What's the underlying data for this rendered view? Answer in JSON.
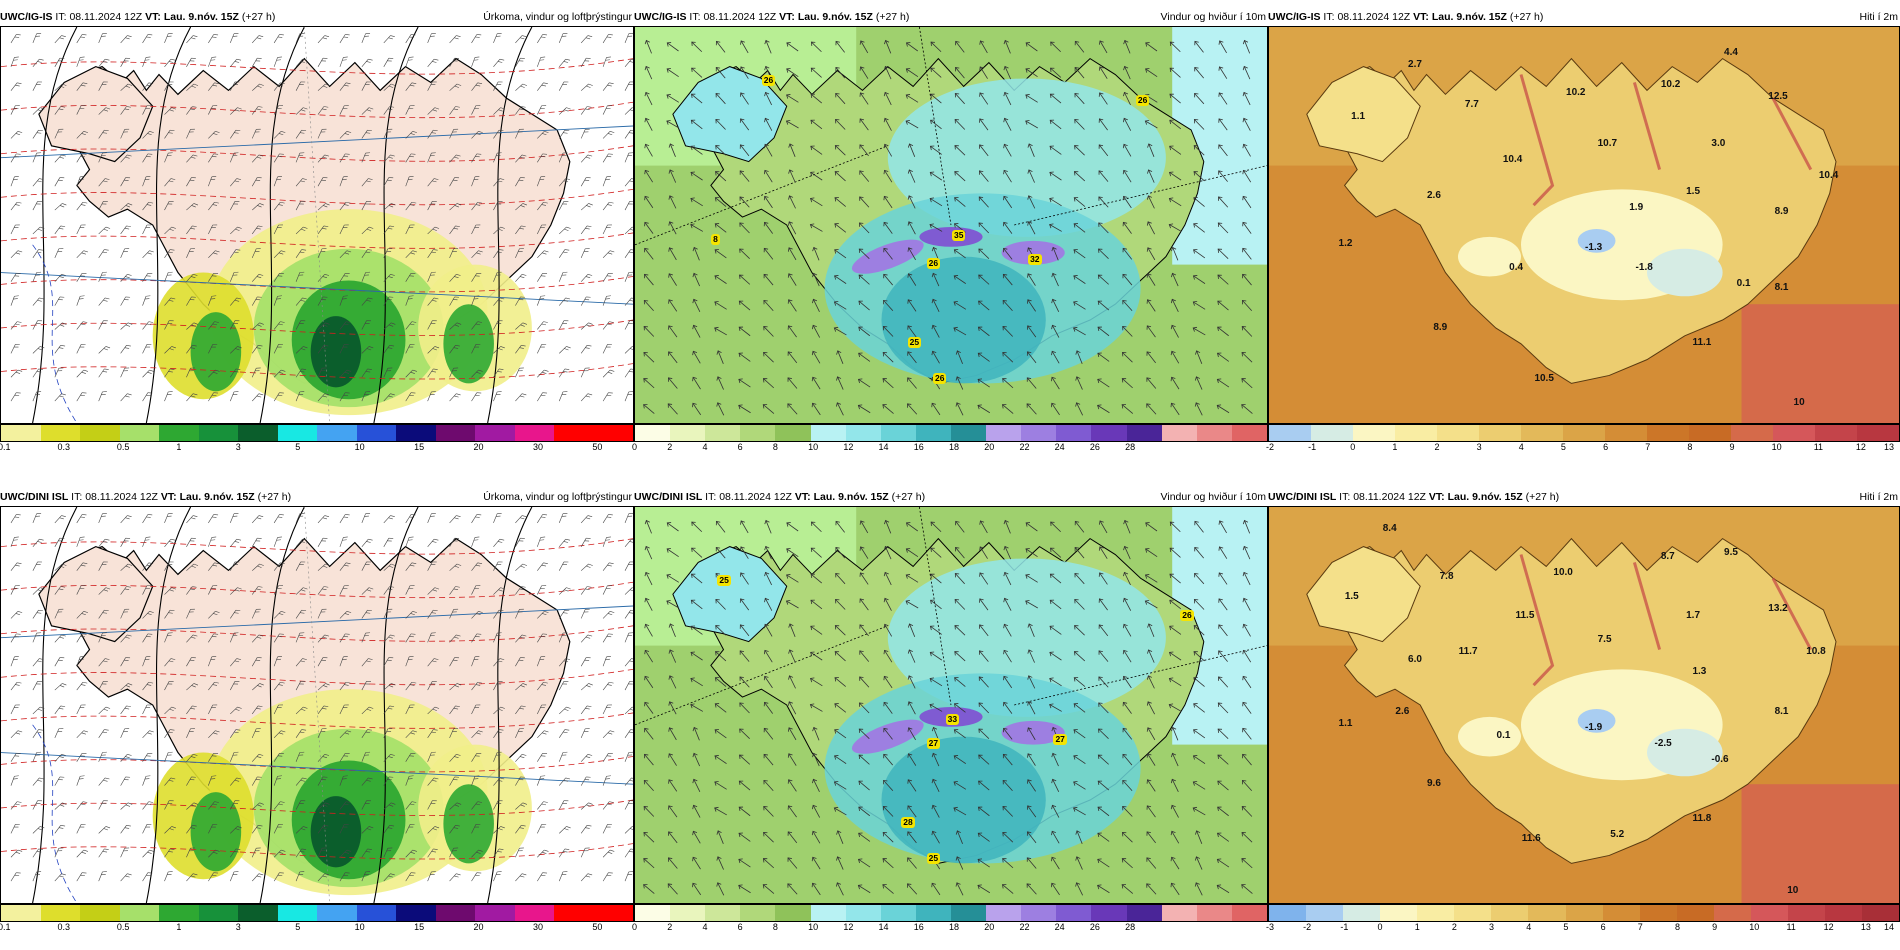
{
  "panels": [
    {
      "id": "ig-precip",
      "model": "UWC/IG-IS",
      "it_label": "IT:",
      "it_value": "08.11.2024 12Z",
      "vt_label": "VT:",
      "vt_value": "Lau. 9.nóv. 15Z",
      "lead": "(+27 h)",
      "title": "Úrkoma, vindur og loftþrýstingur",
      "legend": {
        "colors": [
          "#f3f19e",
          "#dede2c",
          "#c4cf16",
          "#a6e06a",
          "#2ea832",
          "#17913a",
          "#0b5e2c",
          "#18e8e3",
          "#44a3f2",
          "#2751d8",
          "#0b0b7a",
          "#6e0a6e",
          "#a11aa2",
          "#e8168c",
          "#ff0000",
          "#ff0000"
        ],
        "ticks": [
          "0.1",
          "0.3",
          "0.5",
          "1",
          "3",
          "5",
          "10",
          "15",
          "20",
          "30",
          "50"
        ]
      },
      "labels": []
    },
    {
      "id": "ig-wind",
      "model": "UWC/IG-IS",
      "it_label": "IT:",
      "it_value": "08.11.2024 12Z",
      "vt_label": "VT:",
      "vt_value": "Lau. 9.nóv. 15Z",
      "lead": "(+27 h)",
      "title": "Vindur og hviður í 10m",
      "legend": {
        "colors": [
          "#fcfde6",
          "#e9f5bd",
          "#cde79a",
          "#b0d87a",
          "#8fc25a",
          "#b8f2f3",
          "#93e6ea",
          "#6ad3d8",
          "#3fb4bd",
          "#258f97",
          "#b9a2ec",
          "#9d7fe1",
          "#7f5bd2",
          "#6938b8",
          "#4a2598",
          "#f3b2b2",
          "#ea8888",
          "#e06464"
        ],
        "ticks": [
          "0",
          "2",
          "4",
          "6",
          "8",
          "10",
          "12",
          "14",
          "16",
          "18",
          "20",
          "22",
          "24",
          "26",
          "28"
        ]
      },
      "labels": [
        "26",
        "26",
        "35",
        "26",
        "32",
        "8",
        "25",
        "26"
      ]
    },
    {
      "id": "ig-temp",
      "model": "UWC/IG-IS",
      "it_label": "IT:",
      "it_value": "08.11.2024 12Z",
      "vt_label": "VT:",
      "vt_value": "Lau. 9.nóv. 15Z",
      "lead": "(+27 h)",
      "title": "Hiti í 2m",
      "legend": {
        "colors": [
          "#a9cdf1",
          "#d6ece4",
          "#fbf6c3",
          "#f9eda3",
          "#f4e08a",
          "#eccd70",
          "#e3b95a",
          "#dba447",
          "#d48d36",
          "#cc7628",
          "#c86b25",
          "#d56a4a",
          "#d5575a",
          "#c4444a",
          "#b83740"
        ],
        "ticks": [
          "-2",
          "-1",
          "0",
          "1",
          "2",
          "3",
          "4",
          "5",
          "6",
          "7",
          "8",
          "9",
          "10",
          "11",
          "12",
          "13"
        ]
      },
      "labels": [
        "2.7",
        "1.1",
        "7.7",
        "10.2",
        "10.2",
        "4.4",
        "12.5",
        "10.4",
        "10.7",
        "3.0",
        "2.6",
        "1.9",
        "1.5",
        "10.4",
        "8.9",
        "1.2",
        "0.4",
        "-1.3",
        "-1.8",
        "0.1",
        "8.1",
        "8.9",
        "11.1",
        "10.5",
        "10"
      ]
    },
    {
      "id": "dini-precip",
      "model": "UWC/DINI ISL",
      "it_label": "IT:",
      "it_value": "08.11.2024 12Z",
      "vt_label": "VT:",
      "vt_value": "Lau. 9.nóv. 15Z",
      "lead": "(+27 h)",
      "title": "Úrkoma, vindur og loftþrýstingur",
      "legend": {
        "colors": [
          "#f3f19e",
          "#dede2c",
          "#c4cf16",
          "#a6e06a",
          "#2ea832",
          "#17913a",
          "#0b5e2c",
          "#18e8e3",
          "#44a3f2",
          "#2751d8",
          "#0b0b7a",
          "#6e0a6e",
          "#a11aa2",
          "#e8168c",
          "#ff0000",
          "#ff0000"
        ],
        "ticks": [
          "0.1",
          "0.3",
          "0.5",
          "1",
          "3",
          "5",
          "10",
          "15",
          "20",
          "30",
          "50"
        ]
      },
      "labels": []
    },
    {
      "id": "dini-wind",
      "model": "UWC/DINI ISL",
      "it_label": "IT:",
      "it_value": "08.11.2024 12Z",
      "vt_label": "VT:",
      "vt_value": "Lau. 9.nóv. 15Z",
      "lead": "(+27 h)",
      "title": "Vindur og hviður í 10m",
      "legend": {
        "colors": [
          "#fcfde6",
          "#e9f5bd",
          "#cde79a",
          "#b0d87a",
          "#8fc25a",
          "#b8f2f3",
          "#93e6ea",
          "#6ad3d8",
          "#3fb4bd",
          "#258f97",
          "#b9a2ec",
          "#9d7fe1",
          "#7f5bd2",
          "#6938b8",
          "#4a2598",
          "#f3b2b2",
          "#ea8888",
          "#e06464"
        ],
        "ticks": [
          "0",
          "2",
          "4",
          "6",
          "8",
          "10",
          "12",
          "14",
          "16",
          "18",
          "20",
          "22",
          "24",
          "26",
          "28"
        ]
      },
      "labels": [
        "25",
        "26",
        "33",
        "27",
        "27",
        "28",
        "25"
      ]
    },
    {
      "id": "dini-temp",
      "model": "UWC/DINI ISL",
      "it_label": "IT:",
      "it_value": "08.11.2024 12Z",
      "vt_label": "VT:",
      "vt_value": "Lau. 9.nóv. 15Z",
      "lead": "(+27 h)",
      "title": "Hiti í 2m",
      "legend": {
        "colors": [
          "#7fb3ec",
          "#a9cdf1",
          "#d6ece4",
          "#fbf6c3",
          "#f9eda3",
          "#f4e08a",
          "#eccd70",
          "#e3b95a",
          "#dba447",
          "#d48d36",
          "#cc7628",
          "#c86b25",
          "#d56a4a",
          "#d5575a",
          "#c4444a",
          "#b83740",
          "#a82f37"
        ],
        "ticks": [
          "-3",
          "-2",
          "-1",
          "0",
          "1",
          "2",
          "3",
          "4",
          "5",
          "6",
          "7",
          "8",
          "9",
          "10",
          "11",
          "12",
          "13",
          "14"
        ]
      },
      "labels": [
        "8.4",
        "1.5",
        "7.8",
        "10.0",
        "8.7",
        "9.5",
        "11.5",
        "11.7",
        "7.5",
        "1.7",
        "13.2",
        "6.0",
        "10.8",
        "1.3",
        "2.6",
        "8.1",
        "1.1",
        "0.1",
        "-1.9",
        "-2.5",
        "-0.6",
        "9.6",
        "11.8",
        "11.6",
        "5.2",
        "10"
      ]
    }
  ]
}
